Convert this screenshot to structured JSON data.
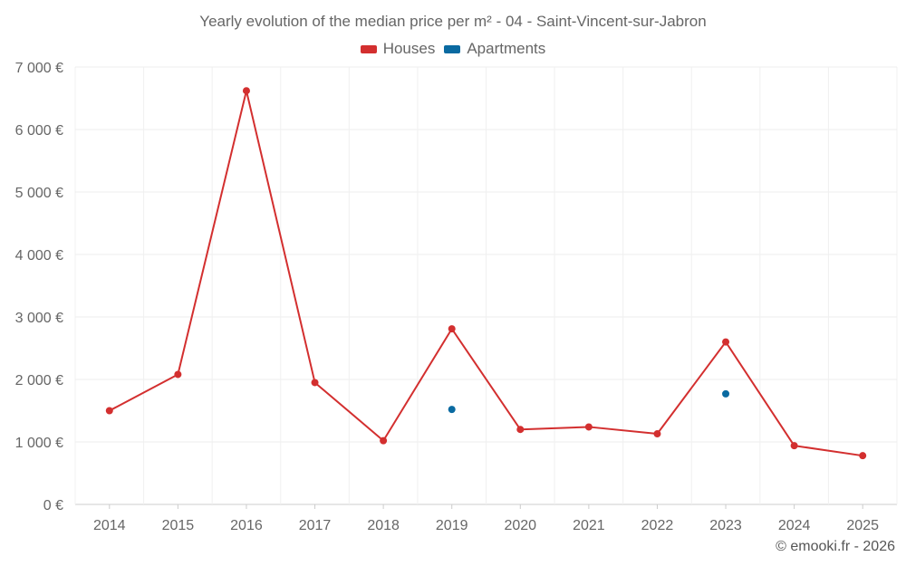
{
  "credit": "© emooki.fr - 2026",
  "chart_data": {
    "type": "line",
    "title": "Yearly evolution of the median price per m² - 04 - Saint-Vincent-sur-Jabron",
    "xlabel": "",
    "ylabel": "",
    "categories": [
      "2014",
      "2015",
      "2016",
      "2017",
      "2018",
      "2019",
      "2020",
      "2021",
      "2022",
      "2023",
      "2024",
      "2025"
    ],
    "ylim": [
      0,
      7000
    ],
    "yticks": [
      0,
      1000,
      2000,
      3000,
      4000,
      5000,
      6000,
      7000
    ],
    "ytick_labels": [
      "0 €",
      "1 000 €",
      "2 000 €",
      "3 000 €",
      "4 000 €",
      "5 000 €",
      "6 000 €",
      "7 000 €"
    ],
    "grid": true,
    "legend": "top-center",
    "series": [
      {
        "name": "Houses",
        "color": "#d32f2f",
        "values": [
          1500,
          2080,
          6620,
          1950,
          1020,
          2810,
          1200,
          1240,
          1130,
          2600,
          940,
          780
        ]
      },
      {
        "name": "Apartments",
        "color": "#0a6aa1",
        "values": [
          null,
          null,
          null,
          null,
          null,
          1520,
          null,
          null,
          null,
          1770,
          null,
          null
        ]
      }
    ]
  }
}
